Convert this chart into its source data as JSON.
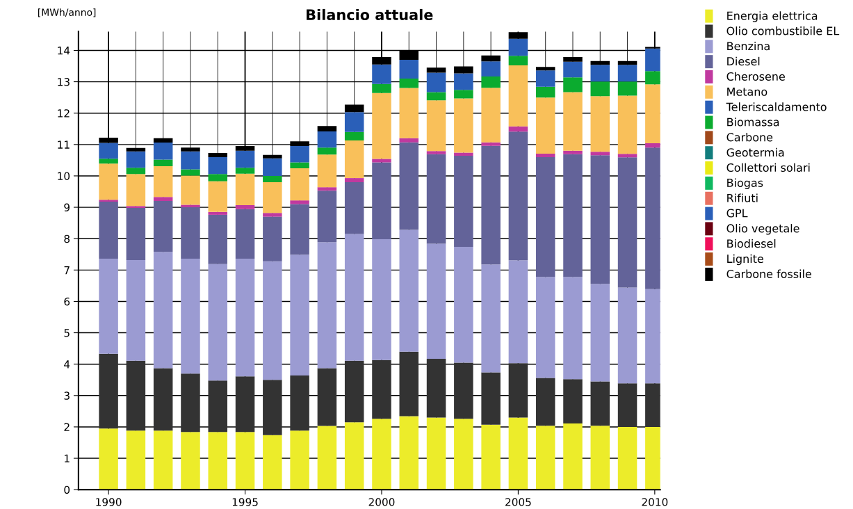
{
  "chart_data": {
    "type": "bar",
    "stacked": true,
    "title": "Bilancio attuale",
    "ylabel": "[MWh/anno]",
    "x": [
      1990,
      1991,
      1992,
      1993,
      1994,
      1995,
      1996,
      1997,
      1998,
      1999,
      2000,
      2001,
      2002,
      2003,
      2004,
      2005,
      2006,
      2007,
      2008,
      2009,
      2010
    ],
    "xlim": [
      1988.9,
      2010.2
    ],
    "xticks": [
      1990,
      {
        "value": 1991,
        "label": null
      },
      {
        "value": 1992,
        "label": null
      },
      {
        "value": 1993,
        "label": null
      },
      {
        "value": 1994,
        "label": null
      },
      1995,
      {
        "value": 1996,
        "label": null
      },
      {
        "value": 1997,
        "label": null
      },
      {
        "value": 1998,
        "label": null
      },
      {
        "value": 1999,
        "label": null
      },
      2000,
      {
        "value": 2001,
        "label": null
      },
      {
        "value": 2002,
        "label": null
      },
      {
        "value": 2003,
        "label": null
      },
      {
        "value": 2004,
        "label": null
      },
      2005,
      {
        "value": 2006,
        "label": null
      },
      {
        "value": 2007,
        "label": null
      },
      {
        "value": 2008,
        "label": null
      },
      {
        "value": 2009,
        "label": null
      },
      2010
    ],
    "ylim": [
      0,
      14.6
    ],
    "yticks": [
      0,
      1,
      2,
      3,
      4,
      5,
      6,
      7,
      8,
      9,
      10,
      11,
      12,
      13,
      14
    ],
    "grid": true,
    "legend": "top right",
    "series": [
      {
        "name": "Energia elettrica",
        "color": "#ecec2a",
        "values": [
          1.95,
          1.88,
          1.88,
          1.84,
          1.84,
          1.84,
          1.74,
          1.88,
          2.03,
          2.15,
          2.26,
          2.34,
          2.3,
          2.26,
          2.07,
          2.3,
          2.04,
          2.11,
          2.04,
          2.0,
          2.0
        ]
      },
      {
        "name": "Olio combustibile EL",
        "color": "#333333",
        "values": [
          2.38,
          2.23,
          1.99,
          1.86,
          1.64,
          1.77,
          1.76,
          1.76,
          1.84,
          1.96,
          1.87,
          2.06,
          1.87,
          1.79,
          1.67,
          1.73,
          1.52,
          1.41,
          1.41,
          1.39,
          1.39
        ]
      },
      {
        "name": "Benzina",
        "color": "#9b9bd2",
        "values": [
          3.03,
          3.21,
          3.71,
          3.66,
          3.71,
          3.75,
          3.78,
          3.85,
          4.02,
          4.04,
          3.85,
          3.88,
          3.67,
          3.69,
          3.44,
          3.28,
          3.22,
          3.26,
          3.11,
          3.05,
          3.0
        ]
      },
      {
        "name": "Diesel",
        "color": "#636399",
        "values": [
          1.82,
          1.66,
          1.62,
          1.64,
          1.57,
          1.58,
          1.42,
          1.61,
          1.64,
          1.65,
          2.45,
          2.79,
          2.85,
          2.9,
          3.78,
          4.1,
          3.82,
          3.91,
          4.1,
          4.15,
          4.51
        ]
      },
      {
        "name": "Cherosene",
        "color": "#c0399f",
        "values": [
          0.06,
          0.06,
          0.13,
          0.08,
          0.09,
          0.13,
          0.12,
          0.12,
          0.11,
          0.13,
          0.11,
          0.13,
          0.1,
          0.1,
          0.11,
          0.17,
          0.11,
          0.11,
          0.11,
          0.11,
          0.14
        ]
      },
      {
        "name": "Metano",
        "color": "#f9c05a",
        "values": [
          1.15,
          1.02,
          0.98,
          0.93,
          0.98,
          1.0,
          0.98,
          1.02,
          1.04,
          1.2,
          2.1,
          1.6,
          1.62,
          1.73,
          1.74,
          1.94,
          1.79,
          1.87,
          1.77,
          1.86,
          1.88
        ]
      },
      {
        "name": "Teleriscaldamento",
        "color": "#2a5fb8",
        "values": [
          0,
          0,
          0,
          0,
          0,
          0,
          0,
          0,
          0,
          0,
          0,
          0,
          0,
          0,
          0,
          0,
          0,
          0,
          0,
          0,
          0
        ]
      },
      {
        "name": "Biomassa",
        "color": "#0bab2f",
        "values": [
          0.16,
          0.2,
          0.21,
          0.2,
          0.23,
          0.19,
          0.2,
          0.19,
          0.22,
          0.27,
          0.29,
          0.3,
          0.26,
          0.27,
          0.36,
          0.31,
          0.34,
          0.47,
          0.47,
          0.45,
          0.42
        ]
      },
      {
        "name": "Carbone",
        "color": "#a0481a",
        "values": [
          0,
          0,
          0,
          0,
          0,
          0,
          0,
          0,
          0,
          0,
          0,
          0,
          0,
          0,
          0,
          0,
          0,
          0,
          0,
          0,
          0
        ]
      },
      {
        "name": "Geotermia",
        "color": "#127d7d",
        "values": [
          0,
          0,
          0,
          0,
          0,
          0,
          0,
          0,
          0,
          0,
          0,
          0,
          0,
          0,
          0,
          0,
          0,
          0,
          0,
          0,
          0
        ]
      },
      {
        "name": "Collettori solari",
        "color": "#eaea15",
        "values": [
          0,
          0,
          0,
          0,
          0,
          0,
          0,
          0,
          0,
          0,
          0,
          0,
          0,
          0,
          0,
          0,
          0,
          0,
          0,
          0,
          0
        ]
      },
      {
        "name": "Biogas",
        "color": "#10b860",
        "values": [
          0,
          0,
          0,
          0,
          0,
          0,
          0,
          0,
          0,
          0,
          0,
          0,
          0,
          0,
          0,
          0,
          0,
          0,
          0,
          0,
          0
        ]
      },
      {
        "name": "Rifiuti",
        "color": "#e87060",
        "values": [
          0,
          0,
          0,
          0,
          0,
          0,
          0,
          0,
          0,
          0,
          0,
          0,
          0,
          0,
          0,
          0,
          0,
          0,
          0,
          0,
          0
        ]
      },
      {
        "name": "GPL",
        "color": "#2a5fb8",
        "values": [
          0.5,
          0.52,
          0.54,
          0.57,
          0.54,
          0.54,
          0.56,
          0.52,
          0.52,
          0.63,
          0.62,
          0.6,
          0.62,
          0.53,
          0.48,
          0.54,
          0.52,
          0.5,
          0.53,
          0.53,
          0.72
        ]
      },
      {
        "name": "Olio vegetale",
        "color": "#6a0010",
        "values": [
          0,
          0,
          0,
          0,
          0,
          0,
          0,
          0,
          0,
          0,
          0,
          0,
          0,
          0,
          0,
          0,
          0,
          0,
          0,
          0,
          0
        ]
      },
      {
        "name": "Biodiesel",
        "color": "#f0105a",
        "values": [
          0,
          0,
          0,
          0,
          0,
          0,
          0,
          0,
          0,
          0,
          0,
          0,
          0,
          0,
          0,
          0,
          0,
          0,
          0,
          0,
          0
        ]
      },
      {
        "name": "Lignite",
        "color": "#a84c18",
        "values": [
          0,
          0,
          0,
          0,
          0,
          0,
          0,
          0,
          0,
          0,
          0,
          0,
          0,
          0,
          0,
          0,
          0,
          0,
          0,
          0,
          0
        ]
      },
      {
        "name": "Carbone fossile",
        "color": "#000000",
        "values": [
          0.17,
          0.11,
          0.14,
          0.12,
          0.13,
          0.15,
          0.11,
          0.15,
          0.17,
          0.24,
          0.24,
          0.29,
          0.16,
          0.22,
          0.19,
          0.21,
          0.11,
          0.15,
          0.12,
          0.12,
          0.05
        ]
      }
    ]
  }
}
